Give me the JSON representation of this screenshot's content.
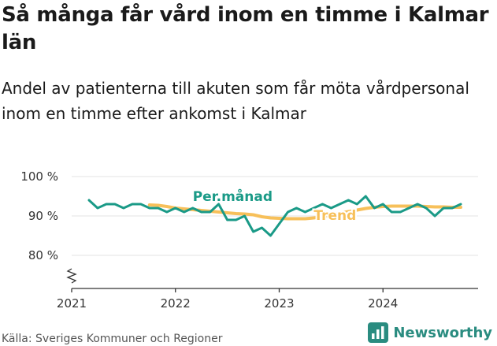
{
  "title": "Så många får vård inom en timme i Kalmar län",
  "subtitle": "Andel av patienterna till akuten som får möta vårdpersonal inom en timme efter ankomst i Kalmar",
  "source": "Källa: Sveriges Kommuner och Regioner",
  "brand": {
    "name": "Newsworthy",
    "logo_icon": "newsworthy-logo-icon",
    "color": "#2a8c80"
  },
  "chart_data": {
    "type": "line",
    "x_start": "2021-01",
    "x_end": "2024-12",
    "x_ticks": [
      {
        "date": "2021-01",
        "label": "2021"
      },
      {
        "date": "2022-01",
        "label": "2022"
      },
      {
        "date": "2023-01",
        "label": "2023"
      },
      {
        "date": "2024-01",
        "label": "2024"
      }
    ],
    "y_ticks": [
      {
        "value": 80,
        "label": "80 %"
      },
      {
        "value": 90,
        "label": "90 %"
      },
      {
        "value": 100,
        "label": "100 %"
      }
    ],
    "ylim": [
      80,
      100
    ],
    "y_axis_break": true,
    "grid": true,
    "series": [
      {
        "name": "Trend",
        "color": "#f7c05a",
        "points": [
          [
            "2021-10",
            92.8
          ],
          [
            "2021-11",
            92.7
          ],
          [
            "2021-12",
            92.4
          ],
          [
            "2022-01",
            92.0
          ],
          [
            "2022-02",
            91.8
          ],
          [
            "2022-03",
            91.6
          ],
          [
            "2022-04",
            91.4
          ],
          [
            "2022-05",
            91.2
          ],
          [
            "2022-06",
            91.0
          ],
          [
            "2022-07",
            90.8
          ],
          [
            "2022-08",
            90.6
          ],
          [
            "2022-09",
            90.5
          ],
          [
            "2022-10",
            90.3
          ],
          [
            "2022-11",
            89.8
          ],
          [
            "2022-12",
            89.5
          ],
          [
            "2023-01",
            89.4
          ],
          [
            "2023-02",
            89.3
          ],
          [
            "2023-03",
            89.3
          ],
          [
            "2023-04",
            89.3
          ],
          [
            "2023-05",
            89.5
          ],
          [
            "2023-06",
            89.8
          ],
          [
            "2023-07",
            90.2
          ],
          [
            "2023-08",
            90.7
          ],
          [
            "2023-09",
            91.1
          ],
          [
            "2023-10",
            91.5
          ],
          [
            "2023-11",
            91.9
          ],
          [
            "2023-12",
            92.2
          ],
          [
            "2024-01",
            92.4
          ],
          [
            "2024-02",
            92.5
          ],
          [
            "2024-03",
            92.5
          ],
          [
            "2024-04",
            92.5
          ],
          [
            "2024-05",
            92.5
          ],
          [
            "2024-06",
            92.4
          ],
          [
            "2024-07",
            92.3
          ],
          [
            "2024-08",
            92.3
          ],
          [
            "2024-09",
            92.2
          ],
          [
            "2024-10",
            92.2
          ]
        ],
        "label": {
          "text": "Trend",
          "at": [
            "2023-05",
            89.0
          ]
        }
      },
      {
        "name": "Per.månad",
        "color": "#1a9a87",
        "points": [
          [
            "2021-03",
            94.0
          ],
          [
            "2021-04",
            92.0
          ],
          [
            "2021-05",
            93.0
          ],
          [
            "2021-06",
            93.0
          ],
          [
            "2021-07",
            92.0
          ],
          [
            "2021-08",
            93.0
          ],
          [
            "2021-09",
            93.0
          ],
          [
            "2021-10",
            92.0
          ],
          [
            "2021-11",
            92.0
          ],
          [
            "2021-12",
            91.0
          ],
          [
            "2022-01",
            92.0
          ],
          [
            "2022-02",
            91.0
          ],
          [
            "2022-03",
            92.0
          ],
          [
            "2022-04",
            91.0
          ],
          [
            "2022-05",
            91.0
          ],
          [
            "2022-06",
            93.0
          ],
          [
            "2022-07",
            89.0
          ],
          [
            "2022-08",
            89.0
          ],
          [
            "2022-09",
            90.0
          ],
          [
            "2022-10",
            86.0
          ],
          [
            "2022-11",
            87.0
          ],
          [
            "2022-12",
            85.0
          ],
          [
            "2023-01",
            88.0
          ],
          [
            "2023-02",
            91.0
          ],
          [
            "2023-03",
            92.0
          ],
          [
            "2023-04",
            91.0
          ],
          [
            "2023-05",
            92.0
          ],
          [
            "2023-06",
            93.0
          ],
          [
            "2023-07",
            92.0
          ],
          [
            "2023-08",
            93.0
          ],
          [
            "2023-09",
            94.0
          ],
          [
            "2023-10",
            93.0
          ],
          [
            "2023-11",
            95.0
          ],
          [
            "2023-12",
            92.0
          ],
          [
            "2024-01",
            93.0
          ],
          [
            "2024-02",
            91.0
          ],
          [
            "2024-03",
            91.0
          ],
          [
            "2024-04",
            92.0
          ],
          [
            "2024-05",
            93.0
          ],
          [
            "2024-06",
            92.0
          ],
          [
            "2024-07",
            90.0
          ],
          [
            "2024-08",
            92.0
          ],
          [
            "2024-09",
            92.0
          ],
          [
            "2024-10",
            93.0
          ]
        ],
        "label": {
          "text": "Per.månad",
          "at": [
            "2022-03",
            93.8
          ]
        }
      }
    ]
  }
}
